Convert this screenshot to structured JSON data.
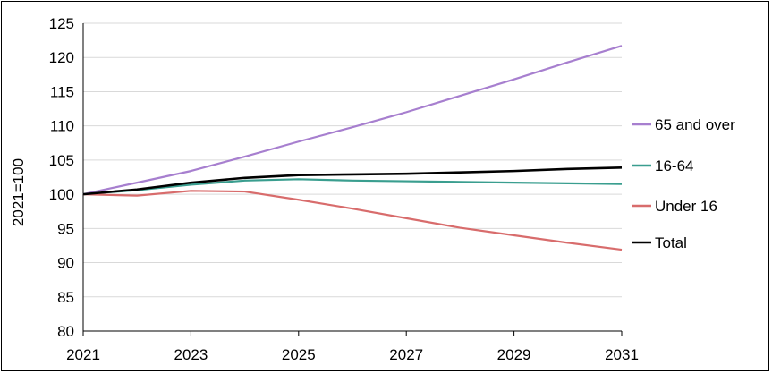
{
  "chart_data": {
    "type": "line",
    "title": "",
    "xlabel": "",
    "ylabel": "2021=100",
    "x": [
      2021,
      2022,
      2023,
      2024,
      2025,
      2026,
      2027,
      2028,
      2029,
      2030,
      2031
    ],
    "x_ticks": [
      "2021",
      "2023",
      "2025",
      "2027",
      "2029",
      "2031"
    ],
    "y_ticks": [
      "80",
      "85",
      "90",
      "95",
      "100",
      "105",
      "110",
      "115",
      "120",
      "125"
    ],
    "xlim": [
      2021,
      2031
    ],
    "ylim": [
      80,
      125
    ],
    "grid": "horizontal",
    "legend_position": "right",
    "series": [
      {
        "name": "65 and over",
        "color": "#a77fcf",
        "values": [
          100,
          101.7,
          103.4,
          105.5,
          107.7,
          109.8,
          112.0,
          114.4,
          116.8,
          119.3,
          121.7
        ]
      },
      {
        "name": "16-64",
        "color": "#3a9e8f",
        "values": [
          100,
          100.6,
          101.4,
          102.0,
          102.2,
          102.0,
          101.9,
          101.8,
          101.7,
          101.6,
          101.5
        ]
      },
      {
        "name": "Under 16",
        "color": "#d86c6c",
        "values": [
          100,
          99.8,
          100.5,
          100.4,
          99.2,
          97.9,
          96.5,
          95.1,
          94.0,
          92.9,
          91.9
        ]
      },
      {
        "name": "Total",
        "color": "#000000",
        "values": [
          100,
          100.7,
          101.7,
          102.4,
          102.8,
          102.9,
          103.0,
          103.2,
          103.4,
          103.7,
          103.9
        ]
      }
    ]
  }
}
